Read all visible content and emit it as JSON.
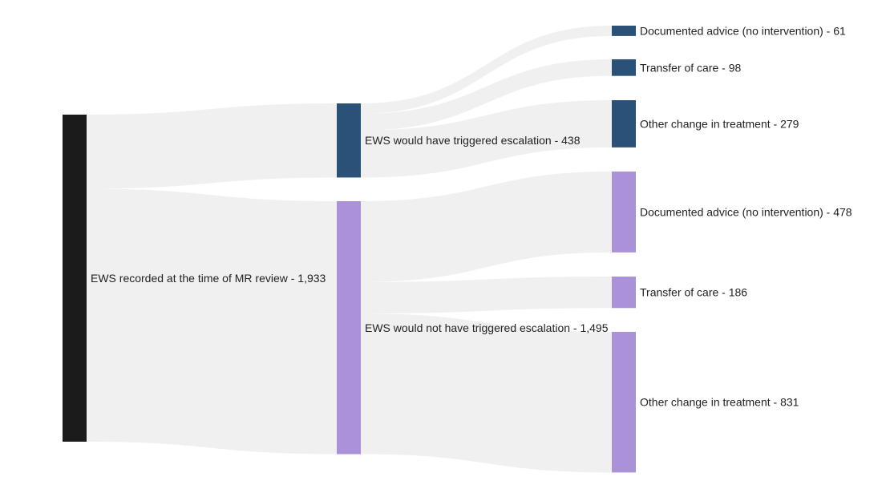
{
  "colors": {
    "root": "#1b1b1b",
    "escalation": "#2a5278",
    "no_escalation": "#ab91d7",
    "link": "#f0f0f0"
  },
  "chart_data": {
    "type": "sankey",
    "nodes": [
      {
        "id": "root",
        "label": "EWS recorded at the time of MR review - 1,933",
        "value": 1933,
        "column": 0,
        "color": "#1b1b1b"
      },
      {
        "id": "trig",
        "label": "EWS would have triggered escalation - 438",
        "value": 438,
        "column": 1,
        "color": "#2a5278"
      },
      {
        "id": "notrig",
        "label": "EWS would not have triggered escalation - 1,495",
        "value": 1495,
        "column": 1,
        "color": "#ab91d7"
      },
      {
        "id": "t_adv",
        "label": "Documented advice (no intervention) - 61",
        "value": 61,
        "column": 2,
        "color": "#2a5278"
      },
      {
        "id": "t_trans",
        "label": "Transfer of care - 98",
        "value": 98,
        "column": 2,
        "color": "#2a5278"
      },
      {
        "id": "t_other",
        "label": "Other change in treatment - 279",
        "value": 279,
        "column": 2,
        "color": "#2a5278"
      },
      {
        "id": "n_adv",
        "label": "Documented advice (no intervention) - 478",
        "value": 478,
        "column": 2,
        "color": "#ab91d7"
      },
      {
        "id": "n_trans",
        "label": "Transfer of care - 186",
        "value": 186,
        "column": 2,
        "color": "#ab91d7"
      },
      {
        "id": "n_other",
        "label": "Other change in treatment - 831",
        "value": 831,
        "column": 2,
        "color": "#ab91d7"
      }
    ],
    "links": [
      {
        "source": "root",
        "target": "trig",
        "value": 438
      },
      {
        "source": "root",
        "target": "notrig",
        "value": 1495
      },
      {
        "source": "trig",
        "target": "t_adv",
        "value": 61
      },
      {
        "source": "trig",
        "target": "t_trans",
        "value": 98
      },
      {
        "source": "trig",
        "target": "t_other",
        "value": 279
      },
      {
        "source": "notrig",
        "target": "n_adv",
        "value": 478
      },
      {
        "source": "notrig",
        "target": "n_trans",
        "value": 186
      },
      {
        "source": "notrig",
        "target": "n_other",
        "value": 831
      }
    ]
  }
}
